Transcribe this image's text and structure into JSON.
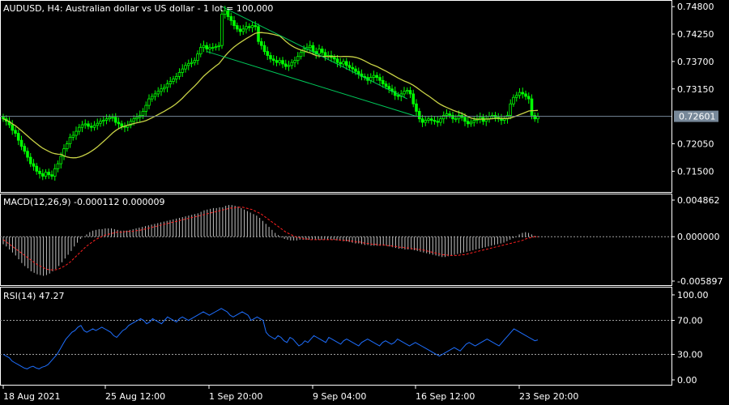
{
  "chart_title": "AUDUSD, H4:  Australian dollar vs US dollar - 1 lot = 100,000",
  "colors": {
    "background": "#000000",
    "grid_border": "#ffffff",
    "bull_candle": "#00ff00",
    "bear_candle": "#00ff00",
    "ma_line": "#c8d246",
    "channel": "#00c85a",
    "price_line": "#778899",
    "macd_hist": "#c0c0c0",
    "macd_signal": "#ff2020",
    "rsi_line": "#1e6fff",
    "level_line": "#a0a0a0"
  },
  "current_price": "0.72601",
  "price_axis": [
    "0.74800",
    "0.74250",
    "0.73700",
    "0.73150",
    "0.72050",
    "0.71500"
  ],
  "macd": {
    "label": "MACD(12,26,9) -0.000112 0.000009",
    "axis": [
      "0.004862",
      "0.000000",
      "-0.005897"
    ]
  },
  "rsi": {
    "label": "RSI(14) 47.27",
    "axis": [
      "100.00",
      "70.00",
      "30.00",
      "0.00"
    ]
  },
  "time_axis": [
    "18 Aug 2021",
    "25 Aug 12:00",
    "1 Sep 20:00",
    "9 Sep 04:00",
    "16 Sep 12:00",
    "23 Sep 20:00"
  ],
  "chart_data": [
    {
      "type": "candlestick",
      "title": "AUDUSD, H4:  Australian dollar vs US dollar - 1 lot = 100,000",
      "ylim": [
        0.711,
        0.749
      ],
      "close": [
        0.7255,
        0.725,
        0.7243,
        0.7232,
        0.7226,
        0.7212,
        0.72,
        0.719,
        0.7178,
        0.7165,
        0.716,
        0.715,
        0.7145,
        0.714,
        0.7148,
        0.7143,
        0.714,
        0.7155,
        0.7165,
        0.718,
        0.7195,
        0.7205,
        0.7218,
        0.7222,
        0.723,
        0.7238,
        0.7243,
        0.7245,
        0.724,
        0.7238,
        0.7242,
        0.7246,
        0.725,
        0.7252,
        0.7255,
        0.7258,
        0.7258,
        0.7248,
        0.7245,
        0.724,
        0.7238,
        0.7242,
        0.725,
        0.7255,
        0.7258,
        0.7262,
        0.727,
        0.7282,
        0.7295,
        0.73,
        0.7305,
        0.731,
        0.7315,
        0.7318,
        0.7325,
        0.733,
        0.7335,
        0.734,
        0.7348,
        0.7355,
        0.7362,
        0.7366,
        0.7368,
        0.7372,
        0.7385,
        0.7398,
        0.7402,
        0.7395,
        0.7398,
        0.7398,
        0.74,
        0.7402,
        0.7465,
        0.7472,
        0.746,
        0.7452,
        0.7442,
        0.7435,
        0.743,
        0.7435,
        0.744,
        0.7438,
        0.7442,
        0.744,
        0.741,
        0.7402,
        0.739,
        0.7382,
        0.7375,
        0.7372,
        0.7368,
        0.7372,
        0.7365,
        0.736,
        0.7362,
        0.7368,
        0.7372,
        0.738,
        0.7388,
        0.7395,
        0.7398,
        0.7402,
        0.739,
        0.7385,
        0.7395,
        0.7388,
        0.738,
        0.7382,
        0.7378,
        0.7375,
        0.7368,
        0.7365,
        0.737,
        0.7362,
        0.7358,
        0.7355,
        0.735,
        0.7345,
        0.734,
        0.7338,
        0.7332,
        0.7338,
        0.7342,
        0.7338,
        0.7332,
        0.7325,
        0.732,
        0.7315,
        0.731,
        0.7302,
        0.73,
        0.7305,
        0.731,
        0.7312,
        0.7305,
        0.7285,
        0.727,
        0.7255,
        0.7248,
        0.7252,
        0.7255,
        0.7252,
        0.725,
        0.7248,
        0.7255,
        0.7262,
        0.7265,
        0.7262,
        0.7255,
        0.7255,
        0.7262,
        0.7258,
        0.725,
        0.7245,
        0.7248,
        0.7252,
        0.7255,
        0.7258,
        0.725,
        0.7255,
        0.726,
        0.7262,
        0.7258,
        0.7255,
        0.7252,
        0.7255,
        0.7262,
        0.7285,
        0.7298,
        0.7302,
        0.7308,
        0.7305,
        0.73,
        0.7295,
        0.7262,
        0.7255,
        0.726
      ],
      "ma_period": "unlabeled",
      "price_line": 0.72601
    },
    {
      "type": "histogram+line",
      "title": "MACD(12,26,9) -0.000112 0.000009",
      "ylim": [
        -0.005897,
        0.004862
      ],
      "hist": [
        -0.001,
        -0.0013,
        -0.0017,
        -0.0021,
        -0.0025,
        -0.003,
        -0.0035,
        -0.0039,
        -0.0042,
        -0.0046,
        -0.0048,
        -0.005,
        -0.0051,
        -0.0052,
        -0.0051,
        -0.0049,
        -0.0046,
        -0.0043,
        -0.0039,
        -0.0034,
        -0.0029,
        -0.0024,
        -0.0019,
        -0.0013,
        -0.0008,
        -0.0003,
        0.0,
        0.0003,
        0.0006,
        0.0008,
        0.0009,
        0.001,
        0.001,
        0.0011,
        0.0011,
        0.0011,
        0.001,
        0.0009,
        0.0008,
        0.0008,
        0.0008,
        0.0009,
        0.001,
        0.0011,
        0.0012,
        0.0013,
        0.0014,
        0.0015,
        0.0016,
        0.0017,
        0.0018,
        0.0019,
        0.002,
        0.0021,
        0.0022,
        0.0023,
        0.0024,
        0.0025,
        0.0026,
        0.0027,
        0.0028,
        0.0029,
        0.003,
        0.0031,
        0.0033,
        0.0035,
        0.0036,
        0.0037,
        0.0038,
        0.0038,
        0.0039,
        0.0039,
        0.0041,
        0.0042,
        0.0042,
        0.0041,
        0.004,
        0.0038,
        0.0036,
        0.0034,
        0.0032,
        0.003,
        0.0028,
        0.0025,
        0.0021,
        0.0017,
        0.0013,
        0.0009,
        0.0005,
        0.0002,
        -0.0001,
        -0.0003,
        -0.0004,
        -0.0005,
        -0.0005,
        -0.0005,
        -0.0004,
        -0.0004,
        -0.0004,
        -0.0004,
        -0.0004,
        -0.0004,
        -0.0004,
        -0.0004,
        -0.0004,
        -0.0004,
        -0.0004,
        -0.0004,
        -0.0005,
        -0.0005,
        -0.0006,
        -0.0006,
        -0.0007,
        -0.0008,
        -0.0009,
        -0.0009,
        -0.001,
        -0.0011,
        -0.0011,
        -0.0012,
        -0.0012,
        -0.0012,
        -0.0012,
        -0.0012,
        -0.0012,
        -0.0013,
        -0.0014,
        -0.0015,
        -0.0016,
        -0.0016,
        -0.0017,
        -0.0017,
        -0.0017,
        -0.0018,
        -0.0019,
        -0.002,
        -0.0021,
        -0.0022,
        -0.0023,
        -0.0024,
        -0.0025,
        -0.0026,
        -0.0027,
        -0.0027,
        -0.0026,
        -0.0025,
        -0.0024,
        -0.0023,
        -0.0022,
        -0.0021,
        -0.002,
        -0.0019,
        -0.0018,
        -0.0017,
        -0.0016,
        -0.0015,
        -0.0014,
        -0.0013,
        -0.0012,
        -0.0011,
        -0.001,
        -0.0009,
        -0.0008,
        -0.0006,
        -0.0004,
        -0.0002,
        0.0,
        0.0003,
        0.0005,
        0.0006,
        0.0005,
        0.0003,
        0.0001,
        0.0
      ],
      "signal": [
        -0.0004,
        -0.0007,
        -0.001,
        -0.0013,
        -0.0016,
        -0.0019,
        -0.0022,
        -0.0025,
        -0.0028,
        -0.0031,
        -0.0034,
        -0.0037,
        -0.0039,
        -0.0041,
        -0.0043,
        -0.0044,
        -0.0044,
        -0.0044,
        -0.0043,
        -0.0041,
        -0.0039,
        -0.0036,
        -0.0033,
        -0.0029,
        -0.0025,
        -0.0021,
        -0.0017,
        -0.0013,
        -0.001,
        -0.0007,
        -0.0004,
        -0.0002,
        0.0,
        0.0002,
        0.0003,
        0.0004,
        0.0005,
        0.0006,
        0.0006,
        0.0006,
        0.0007,
        0.0007,
        0.0007,
        0.0008,
        0.0008,
        0.0009,
        0.001,
        0.0011,
        0.0012,
        0.0013,
        0.0014,
        0.0015,
        0.0016,
        0.0017,
        0.0018,
        0.0019,
        0.002,
        0.0021,
        0.0022,
        0.0023,
        0.0024,
        0.0025,
        0.0026,
        0.0027,
        0.0028,
        0.0029,
        0.003,
        0.0031,
        0.0032,
        0.0033,
        0.0034,
        0.0035,
        0.0036,
        0.0037,
        0.0038,
        0.0038,
        0.0039,
        0.0039,
        0.0039,
        0.0038,
        0.0037,
        0.0036,
        0.0034,
        0.0032,
        0.003,
        0.0027,
        0.0024,
        0.0021,
        0.0018,
        0.0015,
        0.0012,
        0.0009,
        0.0006,
        0.0004,
        0.0002,
        0.0,
        -0.0001,
        -0.0002,
        -0.0003,
        -0.0003,
        -0.0004,
        -0.0004,
        -0.0004,
        -0.0004,
        -0.0004,
        -0.0004,
        -0.0004,
        -0.0004,
        -0.0004,
        -0.0004,
        -0.0005,
        -0.0005,
        -0.0005,
        -0.0006,
        -0.0006,
        -0.0007,
        -0.0007,
        -0.0008,
        -0.0009,
        -0.0009,
        -0.001,
        -0.001,
        -0.0011,
        -0.0011,
        -0.0011,
        -0.0012,
        -0.0012,
        -0.0013,
        -0.0013,
        -0.0014,
        -0.0014,
        -0.0015,
        -0.0015,
        -0.0016,
        -0.0016,
        -0.0017,
        -0.0017,
        -0.0018,
        -0.0019,
        -0.002,
        -0.0021,
        -0.0022,
        -0.0023,
        -0.0024,
        -0.0024,
        -0.0025,
        -0.0025,
        -0.0025,
        -0.0025,
        -0.0024,
        -0.0024,
        -0.0023,
        -0.0022,
        -0.0021,
        -0.002,
        -0.0019,
        -0.0018,
        -0.0017,
        -0.0016,
        -0.0015,
        -0.0014,
        -0.0013,
        -0.0012,
        -0.0011,
        -0.001,
        -0.0009,
        -0.0008,
        -0.0007,
        -0.0006,
        -0.0005,
        -0.0003,
        -0.0002,
        -0.0001,
        0.0,
        0.0
      ]
    },
    {
      "type": "line",
      "title": "RSI(14) 47.27",
      "ylim": [
        0,
        100
      ],
      "levels": [
        70,
        30
      ],
      "values": [
        30,
        28,
        26,
        22,
        20,
        18,
        16,
        14,
        13,
        15,
        16,
        14,
        13,
        15,
        16,
        18,
        22,
        26,
        30,
        36,
        42,
        48,
        52,
        56,
        58,
        62,
        64,
        58,
        56,
        58,
        60,
        58,
        60,
        62,
        60,
        58,
        56,
        52,
        50,
        54,
        58,
        60,
        64,
        66,
        68,
        70,
        72,
        70,
        66,
        68,
        72,
        70,
        68,
        66,
        70,
        74,
        72,
        70,
        68,
        72,
        74,
        72,
        70,
        72,
        74,
        76,
        78,
        80,
        78,
        76,
        78,
        80,
        82,
        84,
        82,
        80,
        76,
        74,
        76,
        78,
        80,
        78,
        76,
        70,
        72,
        74,
        72,
        70,
        56,
        52,
        50,
        48,
        52,
        50,
        46,
        44,
        50,
        48,
        44,
        40,
        42,
        46,
        44,
        48,
        52,
        50,
        48,
        46,
        44,
        50,
        48,
        46,
        44,
        42,
        46,
        48,
        46,
        44,
        42,
        40,
        44,
        46,
        48,
        46,
        44,
        42,
        40,
        44,
        46,
        44,
        42,
        44,
        48,
        46,
        44,
        42,
        40,
        42,
        44,
        42,
        40,
        38,
        36,
        34,
        32,
        30,
        28,
        30,
        32,
        34,
        36,
        38,
        36,
        34,
        38,
        42,
        44,
        42,
        40,
        42,
        44,
        46,
        48,
        46,
        44,
        42,
        40,
        44,
        48,
        52,
        56,
        60,
        58,
        56,
        54,
        52,
        50,
        48,
        46,
        47
      ]
    }
  ]
}
